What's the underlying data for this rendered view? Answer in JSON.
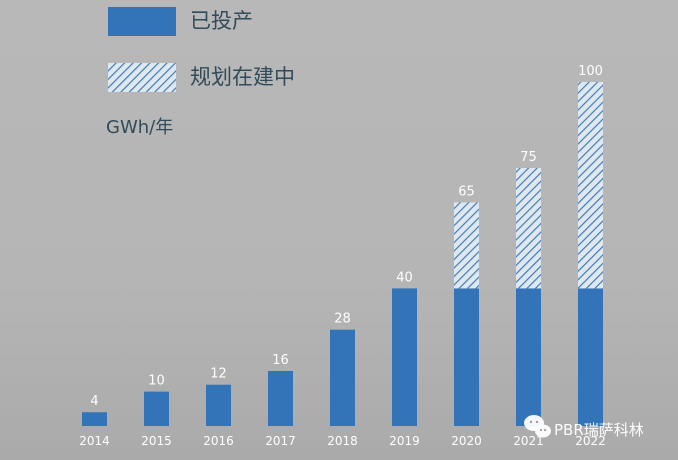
{
  "chart_data": {
    "type": "bar",
    "categories": [
      "2014",
      "2015",
      "2016",
      "2017",
      "2018",
      "2019",
      "2020",
      "2021",
      "2022"
    ],
    "series": [
      {
        "name": "已投产",
        "values": [
          4,
          10,
          12,
          16,
          28,
          40,
          40,
          40,
          40
        ]
      },
      {
        "name": "规划在建中",
        "values": [
          0,
          0,
          0,
          0,
          0,
          0,
          25,
          35,
          60
        ]
      }
    ],
    "totals": [
      4,
      10,
      12,
      16,
      28,
      40,
      65,
      75,
      100
    ],
    "ylabel": "GWh/年",
    "ylim": [
      0,
      100
    ],
    "grid": false,
    "legend_position": "top-left",
    "colors": {
      "produced": "#3373b8",
      "planned_hatch": "#3b78b8",
      "label": "#ffffff",
      "legend_text": "#324b59",
      "background": "#b7b7b7"
    }
  },
  "watermark": {
    "text": "PBR瑞萨科林",
    "icon": "wechat-icon"
  }
}
